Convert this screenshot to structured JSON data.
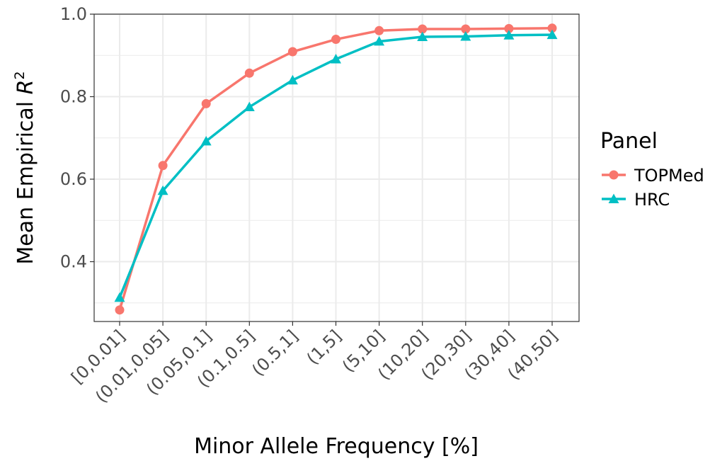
{
  "chart_data": {
    "type": "line",
    "xlabel": "Minor Allele Frequency [%]",
    "ylabel_main": "Mean Empirical ",
    "ylabel_var": "R",
    "ylabel_sup": "2",
    "categories": [
      "[0,0.01]",
      "(0.01,0.05]",
      "(0.05,0.1]",
      "(0.1,0.5]",
      "(0.5,1]",
      "(1,5]",
      "(5,10]",
      "(10,20]",
      "(20,30]",
      "(30,40]",
      "(40,50]"
    ],
    "ylim": [
      0.255,
      1.0
    ],
    "yticks": [
      0.4,
      0.6,
      0.8,
      1.0
    ],
    "ytick_labels": [
      "0.4",
      "0.6",
      "0.8",
      "1.0"
    ],
    "grid": true,
    "legend": {
      "title": "Panel",
      "placement": "right"
    },
    "series": [
      {
        "name": "TOPMed",
        "color": "#F8766D",
        "marker": "circle",
        "values": [
          0.283,
          0.633,
          0.783,
          0.857,
          0.909,
          0.939,
          0.96,
          0.964,
          0.964,
          0.965,
          0.966
        ]
      },
      {
        "name": "HRC",
        "color": "#00BFC4",
        "marker": "triangle",
        "values": [
          0.313,
          0.572,
          0.692,
          0.775,
          0.84,
          0.891,
          0.934,
          0.945,
          0.946,
          0.949,
          0.95
        ]
      }
    ]
  }
}
